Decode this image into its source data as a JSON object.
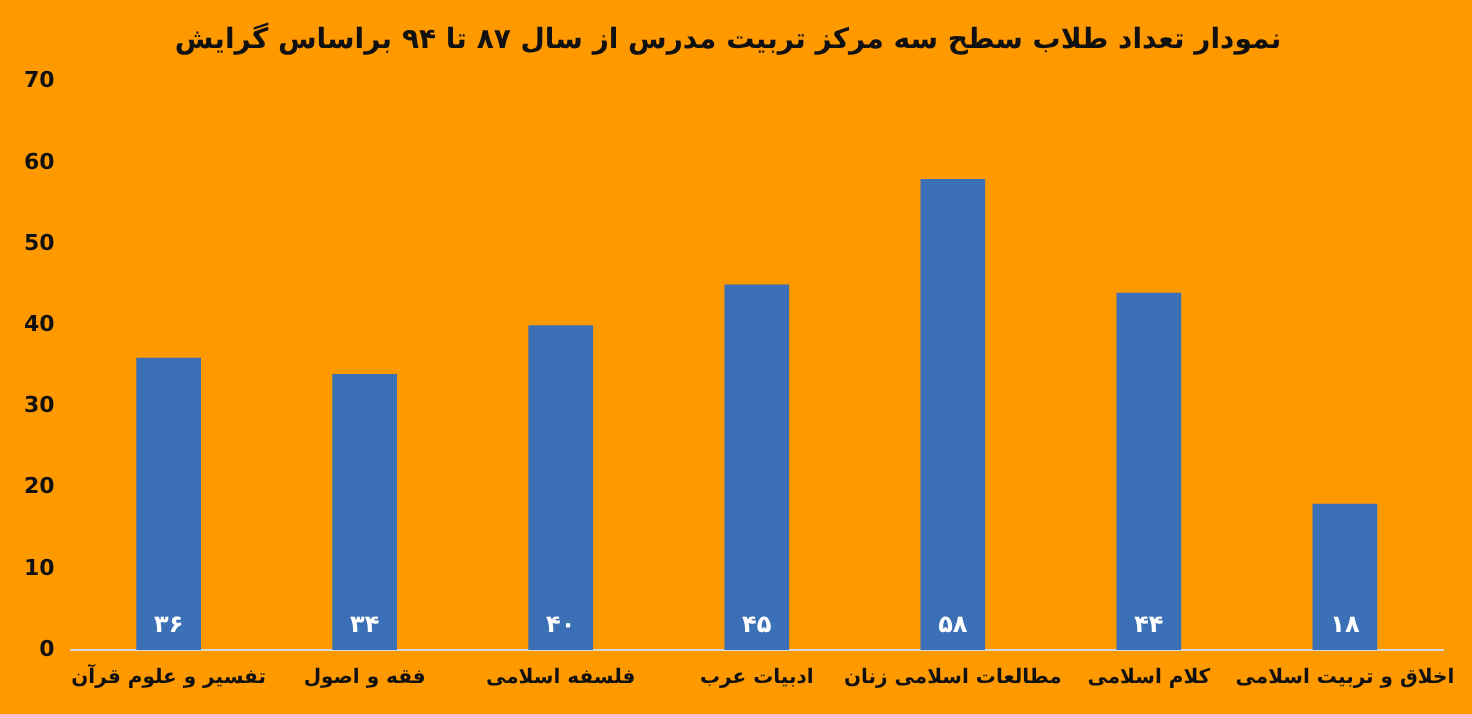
{
  "chart_data": {
    "type": "bar",
    "title": "نمودار تعداد طلاب سطح سه مرکز تربیت مدرس از سال ۸۷ تا ۹۴ براساس گرایش",
    "categories": [
      "تفسیر و علوم قرآن",
      "فقه و اصول",
      "فلسفه اسلامی",
      "ادبیات عرب",
      "مطالعات اسلامی زنان",
      "کلام اسلامی",
      "اخلاق و تربیت اسلامی"
    ],
    "values": [
      36,
      34,
      40,
      45,
      58,
      44,
      18
    ],
    "value_labels": [
      "۳۶",
      "۳۴",
      "۴۰",
      "۴۵",
      "۵۸",
      "۴۴",
      "۱۸"
    ],
    "color": "#3b6fb6",
    "ylim": [
      0,
      70
    ],
    "yticks": [
      0,
      10,
      20,
      30,
      40,
      50,
      60,
      70
    ],
    "grid": false,
    "legend": false
  }
}
